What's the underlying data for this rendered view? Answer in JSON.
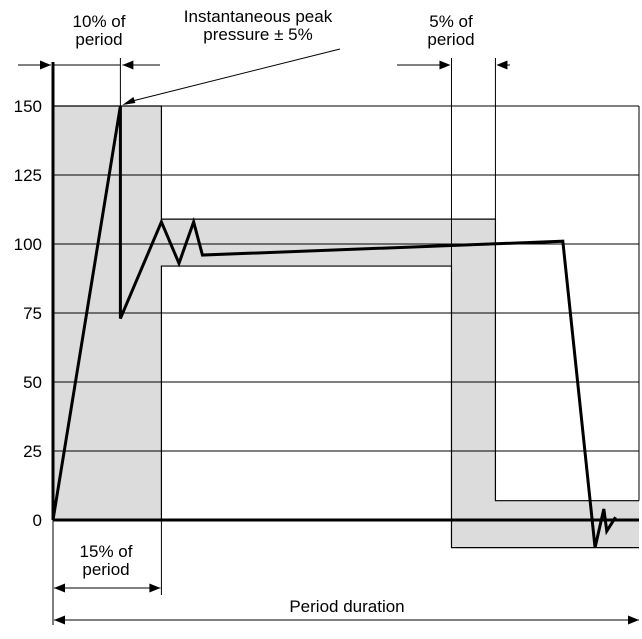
{
  "chart_data": {
    "type": "line",
    "title": "",
    "xlabel": "",
    "ylabel": "",
    "yticks": [
      0,
      25,
      50,
      75,
      100,
      125,
      150
    ],
    "ylim": [
      -10,
      150
    ],
    "xlim": [
      0,
      100
    ],
    "grid": "horizontal",
    "series": [
      {
        "x": [
          0,
          11.5,
          11.5,
          18.5,
          21.5,
          24,
          25.5,
          87,
          92.5,
          94,
          94.5,
          96
        ],
        "y": [
          0,
          150,
          73,
          108,
          93,
          108,
          96,
          101,
          -10,
          4,
          -4,
          1
        ]
      }
    ],
    "tolerance_band": {
      "upper": {
        "x": [
          0,
          18.5,
          18.5,
          75.5,
          75.5,
          100
        ],
        "y": [
          150,
          150,
          109,
          109,
          7,
          7
        ]
      },
      "lower": {
        "x": [
          0,
          18.5,
          18.5,
          68,
          68,
          100
        ],
        "y": [
          0,
          0,
          92,
          92,
          -10,
          -10
        ]
      },
      "lower_drop": {
        "x": [
          68,
          75.5
        ],
        "y": [
          -10,
          -10
        ]
      }
    },
    "annotations": {
      "peak_label": "Instantaneous peak\npressure ± 5%",
      "rise_label": "10% of\nperiod",
      "high_label": "15% of\nperiod",
      "fall_label": "5% of\nperiod",
      "duration_label": "Period duration"
    },
    "colors": {
      "band": "#dcdcdc",
      "line": "#000000",
      "grid": "#000000"
    }
  }
}
